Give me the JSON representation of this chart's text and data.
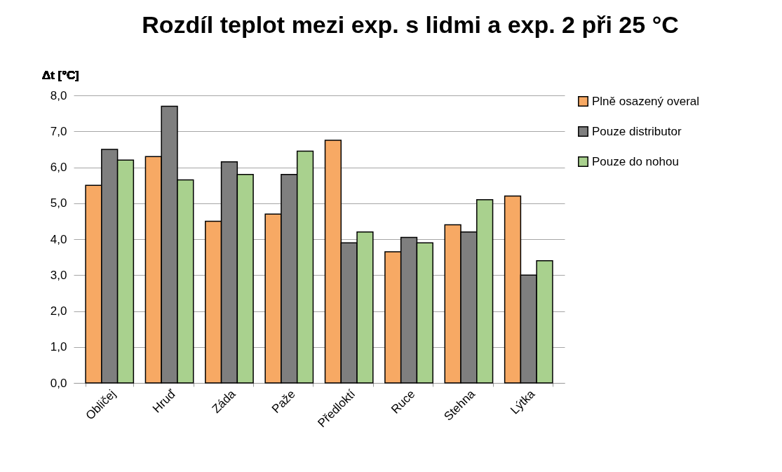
{
  "chart_data": {
    "type": "bar",
    "title": "Rozdíl teplot mezi exp. s lidmi a exp. 2 při 25 °C",
    "ylabel": "Δt [°C]",
    "categories": [
      "Obličej",
      "Hruď",
      "Záda",
      "Paže",
      "Předloktí",
      "Ruce",
      "Stehna",
      "Lýtka"
    ],
    "series": [
      {
        "name": "Plně osazený overal",
        "color": "#f7a964",
        "values": [
          5.5,
          6.3,
          4.5,
          4.7,
          6.75,
          3.65,
          4.4,
          5.2
        ]
      },
      {
        "name": "Pouze distributor",
        "color": "#7f7f7f",
        "values": [
          6.5,
          7.7,
          6.15,
          5.8,
          3.9,
          4.05,
          4.2,
          3.0
        ]
      },
      {
        "name": "Pouze do nohou",
        "color": "#a9d18e",
        "values": [
          6.2,
          5.65,
          5.8,
          6.45,
          4.2,
          3.9,
          5.1,
          3.4
        ]
      }
    ],
    "ylim": [
      0,
      8
    ],
    "yticks": [
      {
        "value": 0,
        "label": "0,0"
      },
      {
        "value": 1,
        "label": "1,0"
      },
      {
        "value": 2,
        "label": "2,0"
      },
      {
        "value": 3,
        "label": "3,0"
      },
      {
        "value": 4,
        "label": "4,0"
      },
      {
        "value": 5,
        "label": "5,0"
      },
      {
        "value": 6,
        "label": "6,0"
      },
      {
        "value": 7,
        "label": "7,0"
      },
      {
        "value": 8,
        "label": "8,0"
      }
    ],
    "grid": "y",
    "legend": "right"
  }
}
